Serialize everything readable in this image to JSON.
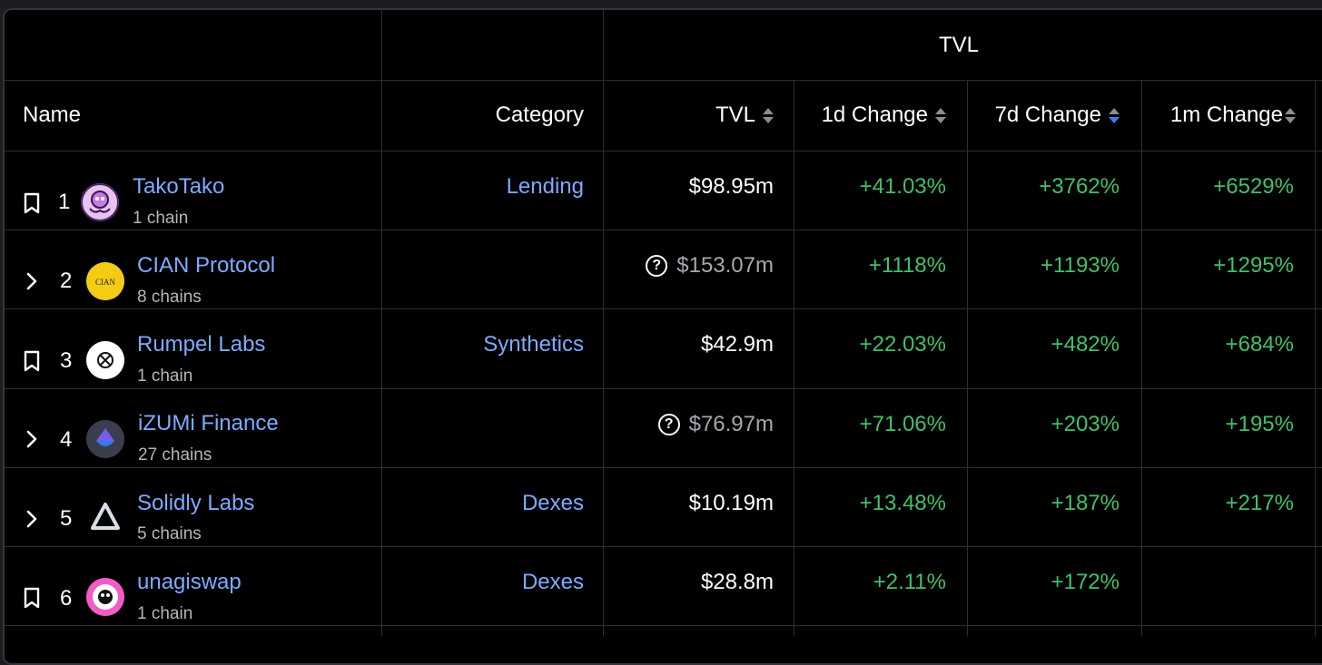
{
  "header": {
    "group_label": "TVL",
    "columns": {
      "name": "Name",
      "category": "Category",
      "tvl": "TVL",
      "change_1d": "1d Change",
      "change_7d": "7d Change",
      "change_1m": "1m Change"
    },
    "sorted_column": "7d Change",
    "sort_direction": "descending"
  },
  "colors": {
    "background": "#000000",
    "link": "#7eaaff",
    "positive": "#3fc16a",
    "sort_active": "#3f7ff5",
    "muted": "#a6a8ae"
  },
  "rows": [
    {
      "rank": "1",
      "control": "bookmark-icon",
      "logo": "takotako-logo",
      "name": "TakoTako",
      "chains": "1 chain",
      "category": "Lending",
      "tvl": "$98.95m",
      "tvl_unknown": false,
      "change_1d": "+41.03%",
      "change_7d": "+3762%",
      "change_1m": "+6529%"
    },
    {
      "rank": "2",
      "control": "chevron-right-icon",
      "logo": "cian-logo",
      "name": "CIAN Protocol",
      "chains": "8 chains",
      "category": "",
      "tvl": "$153.07m",
      "tvl_unknown": true,
      "change_1d": "+1118%",
      "change_7d": "+1193%",
      "change_1m": "+1295%"
    },
    {
      "rank": "3",
      "control": "bookmark-icon",
      "logo": "rumpel-logo",
      "name": "Rumpel Labs",
      "chains": "1 chain",
      "category": "Synthetics",
      "tvl": "$42.9m",
      "tvl_unknown": false,
      "change_1d": "+22.03%",
      "change_7d": "+482%",
      "change_1m": "+684%"
    },
    {
      "rank": "4",
      "control": "chevron-right-icon",
      "logo": "izumi-logo",
      "name": "iZUMi Finance",
      "chains": "27 chains",
      "category": "",
      "tvl": "$76.97m",
      "tvl_unknown": true,
      "change_1d": "+71.06%",
      "change_7d": "+203%",
      "change_1m": "+195%"
    },
    {
      "rank": "5",
      "control": "chevron-right-icon",
      "logo": "solidly-logo",
      "name": "Solidly Labs",
      "chains": "5 chains",
      "category": "Dexes",
      "tvl": "$10.19m",
      "tvl_unknown": false,
      "change_1d": "+13.48%",
      "change_7d": "+187%",
      "change_1m": "+217%"
    },
    {
      "rank": "6",
      "control": "bookmark-icon",
      "logo": "unagiswap-logo",
      "name": "unagiswap",
      "chains": "1 chain",
      "category": "Dexes",
      "tvl": "$28.8m",
      "tvl_unknown": false,
      "change_1d": "+2.11%",
      "change_7d": "+172%",
      "change_1m": ""
    }
  ]
}
